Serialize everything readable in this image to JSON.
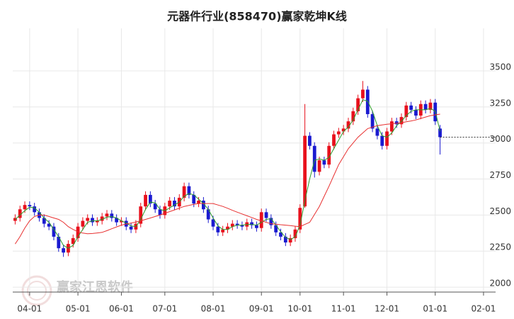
{
  "chart_data": {
    "type": "candlestick",
    "title": "元器件行业(858470)赢家乾坤K线",
    "watermark": "赢家江恩软件",
    "categories": [
      null,
      null,
      null,
      "04-01",
      null,
      null,
      null,
      null,
      null,
      null,
      null,
      null,
      null,
      "05-01",
      null,
      null,
      null,
      null,
      null,
      null,
      null,
      null,
      "06-01",
      null,
      null,
      null,
      null,
      null,
      null,
      null,
      null,
      "07-01",
      null,
      null,
      null,
      null,
      null,
      null,
      null,
      null,
      null,
      "08-01",
      null,
      null,
      null,
      null,
      null,
      null,
      null,
      null,
      null,
      "09-01",
      null,
      null,
      null,
      null,
      null,
      null,
      null,
      "10-01",
      null,
      null,
      null,
      null,
      null,
      null,
      null,
      null,
      "11-01",
      null,
      null,
      null,
      null,
      null,
      null,
      null,
      null,
      "12-01",
      null,
      null,
      null,
      null,
      null,
      null,
      null,
      null,
      null,
      "01-01",
      null,
      null,
      null,
      null,
      null,
      null,
      null,
      null,
      null,
      "02-01",
      null,
      null
    ],
    "open": [
      2460,
      2480,
      2540,
      2570,
      2560,
      2520,
      2480,
      2440,
      2420,
      2350,
      2270,
      2240,
      2300,
      2340,
      2420,
      2460,
      2480,
      2450,
      2460,
      2490,
      2510,
      2480,
      2450,
      2460,
      2420,
      2400,
      2440,
      2560,
      2640,
      2580,
      2540,
      2500,
      2560,
      2600,
      2560,
      2620,
      2700,
      2640,
      2580,
      2600,
      2540,
      2470,
      2420,
      2380,
      2400,
      2420,
      2440,
      2430,
      2420,
      2450,
      2430,
      2410,
      2520,
      2480,
      2430,
      2380,
      2350,
      2310,
      2340,
      2400,
      2560,
      3050,
      2980,
      2800,
      2880,
      2850,
      2980,
      3060,
      3080,
      3100,
      3150,
      3220,
      3310,
      3370,
      3200,
      3100,
      3050,
      2980,
      3080,
      3150,
      3130,
      3180,
      3260,
      3230,
      3190,
      3270,
      3230,
      3280,
      3100,
      null,
      null,
      null,
      null,
      null,
      null,
      null,
      null,
      null,
      null,
      null
    ],
    "high": [
      2505,
      2565,
      2595,
      2595,
      2585,
      2545,
      2505,
      2465,
      2445,
      2375,
      2295,
      2325,
      2365,
      2445,
      2485,
      2505,
      2505,
      2485,
      2515,
      2535,
      2535,
      2505,
      2485,
      2485,
      2445,
      2465,
      2585,
      2665,
      2665,
      2605,
      2565,
      2585,
      2625,
      2625,
      2645,
      2725,
      2725,
      2665,
      2625,
      2625,
      2565,
      2495,
      2445,
      2425,
      2445,
      2465,
      2465,
      2455,
      2475,
      2475,
      2455,
      2545,
      2545,
      2505,
      2455,
      2405,
      2375,
      2365,
      2425,
      2575,
      3270,
      3075,
      3005,
      2905,
      2905,
      3005,
      3085,
      3105,
      3125,
      3175,
      3245,
      3335,
      3430,
      3395,
      3225,
      3125,
      3075,
      3105,
      3175,
      3175,
      3205,
      3285,
      3285,
      3255,
      3295,
      3295,
      3305,
      3305,
      3125,
      null,
      null,
      null,
      null,
      null,
      null,
      null,
      null,
      null,
      null,
      null
    ],
    "low": [
      2435,
      2455,
      2515,
      2535,
      2495,
      2455,
      2415,
      2395,
      2325,
      2245,
      2210,
      2215,
      2275,
      2315,
      2395,
      2435,
      2425,
      2425,
      2435,
      2465,
      2455,
      2425,
      2425,
      2395,
      2375,
      2375,
      2415,
      2535,
      2555,
      2515,
      2475,
      2475,
      2535,
      2535,
      2535,
      2595,
      2615,
      2555,
      2555,
      2515,
      2445,
      2395,
      2355,
      2355,
      2375,
      2395,
      2405,
      2395,
      2395,
      2405,
      2385,
      2385,
      2455,
      2405,
      2355,
      2325,
      2285,
      2285,
      2315,
      2375,
      2550,
      2955,
      2760,
      2775,
      2825,
      2825,
      2955,
      3035,
      3055,
      3075,
      3125,
      3195,
      3285,
      3175,
      3075,
      3025,
      2955,
      2955,
      3055,
      3105,
      3105,
      3155,
      3205,
      3165,
      3165,
      3205,
      3205,
      3125,
      2920,
      null,
      null,
      null,
      null,
      null,
      null,
      null,
      null,
      null,
      null,
      null
    ],
    "close": [
      2480,
      2540,
      2570,
      2560,
      2520,
      2480,
      2440,
      2420,
      2350,
      2270,
      2240,
      2300,
      2340,
      2420,
      2460,
      2480,
      2450,
      2460,
      2490,
      2510,
      2480,
      2450,
      2460,
      2420,
      2400,
      2440,
      2560,
      2640,
      2580,
      2540,
      2500,
      2560,
      2600,
      2560,
      2620,
      2700,
      2640,
      2580,
      2600,
      2540,
      2470,
      2420,
      2380,
      2400,
      2420,
      2440,
      2430,
      2420,
      2450,
      2430,
      2410,
      2520,
      2480,
      2430,
      2380,
      2350,
      2310,
      2340,
      2400,
      2550,
      3050,
      2980,
      2800,
      2880,
      2850,
      2980,
      3060,
      3080,
      3100,
      3150,
      3220,
      3310,
      3370,
      3200,
      3100,
      3050,
      2980,
      3080,
      3150,
      3130,
      3180,
      3260,
      3230,
      3190,
      3270,
      3230,
      3280,
      3150,
      3040,
      null,
      null,
      null,
      null,
      null,
      null,
      null,
      null,
      null,
      null,
      null
    ],
    "up_color": "#e8101c",
    "down_color": "#1a1ad0",
    "lines": [
      {
        "color": "#2a9a2a",
        "values": [
          2470,
          2500,
          2530,
          2555,
          2550,
          2520,
          2480,
          2450,
          2400,
          2350,
          2290,
          2270,
          2290,
          2350,
          2400,
          2450,
          2460,
          2460,
          2470,
          2485,
          2490,
          2480,
          2460,
          2445,
          2425,
          2420,
          2470,
          2540,
          2590,
          2585,
          2540,
          2530,
          2550,
          2570,
          2590,
          2630,
          2650,
          2640,
          2610,
          2580,
          2540,
          2480,
          2425,
          2400,
          2400,
          2420,
          2430,
          2430,
          2435,
          2435,
          2430,
          2450,
          2470,
          2475,
          2430,
          2385,
          2345,
          2330,
          2350,
          2430,
          2600,
          2750,
          2880,
          2890,
          2880,
          2900,
          2960,
          3020,
          3080,
          3110,
          3160,
          3230,
          3300,
          3290,
          3220,
          3120,
          3050,
          3040,
          3070,
          3120,
          3150,
          3190,
          3220,
          3230,
          3230,
          3230,
          3240,
          3220,
          3080,
          null,
          null,
          null,
          null,
          null,
          null,
          null,
          null,
          null,
          null,
          null
        ]
      },
      {
        "color": "#e83030",
        "values": [
          2300,
          2350,
          2410,
          2460,
          2490,
          2500,
          2500,
          2490,
          2480,
          2470,
          2450,
          2420,
          2400,
          2385,
          2375,
          2370,
          2372,
          2376,
          2380,
          2392,
          2405,
          2418,
          2430,
          2438,
          2445,
          2452,
          2460,
          2470,
          2480,
          2490,
          2500,
          2512,
          2524,
          2536,
          2548,
          2560,
          2567,
          2574,
          2580,
          2580,
          2580,
          2580,
          2570,
          2560,
          2547,
          2533,
          2520,
          2508,
          2495,
          2483,
          2470,
          2460,
          2450,
          2440,
          2437,
          2433,
          2430,
          2427,
          2423,
          2420,
          2435,
          2450,
          2505,
          2560,
          2630,
          2700,
          2775,
          2850,
          2905,
          2960,
          3000,
          3040,
          3070,
          3100,
          3110,
          3120,
          3125,
          3130,
          3133,
          3137,
          3140,
          3147,
          3153,
          3160,
          3170,
          3180,
          3190,
          3195,
          3200,
          null,
          null,
          null,
          null,
          null,
          null,
          null,
          null,
          null,
          null,
          null
        ]
      }
    ],
    "ylim": [
      1966,
      3795
    ],
    "yticks": [
      2000,
      2250,
      2500,
      2750,
      3000,
      3250,
      3500
    ],
    "grid": true
  }
}
